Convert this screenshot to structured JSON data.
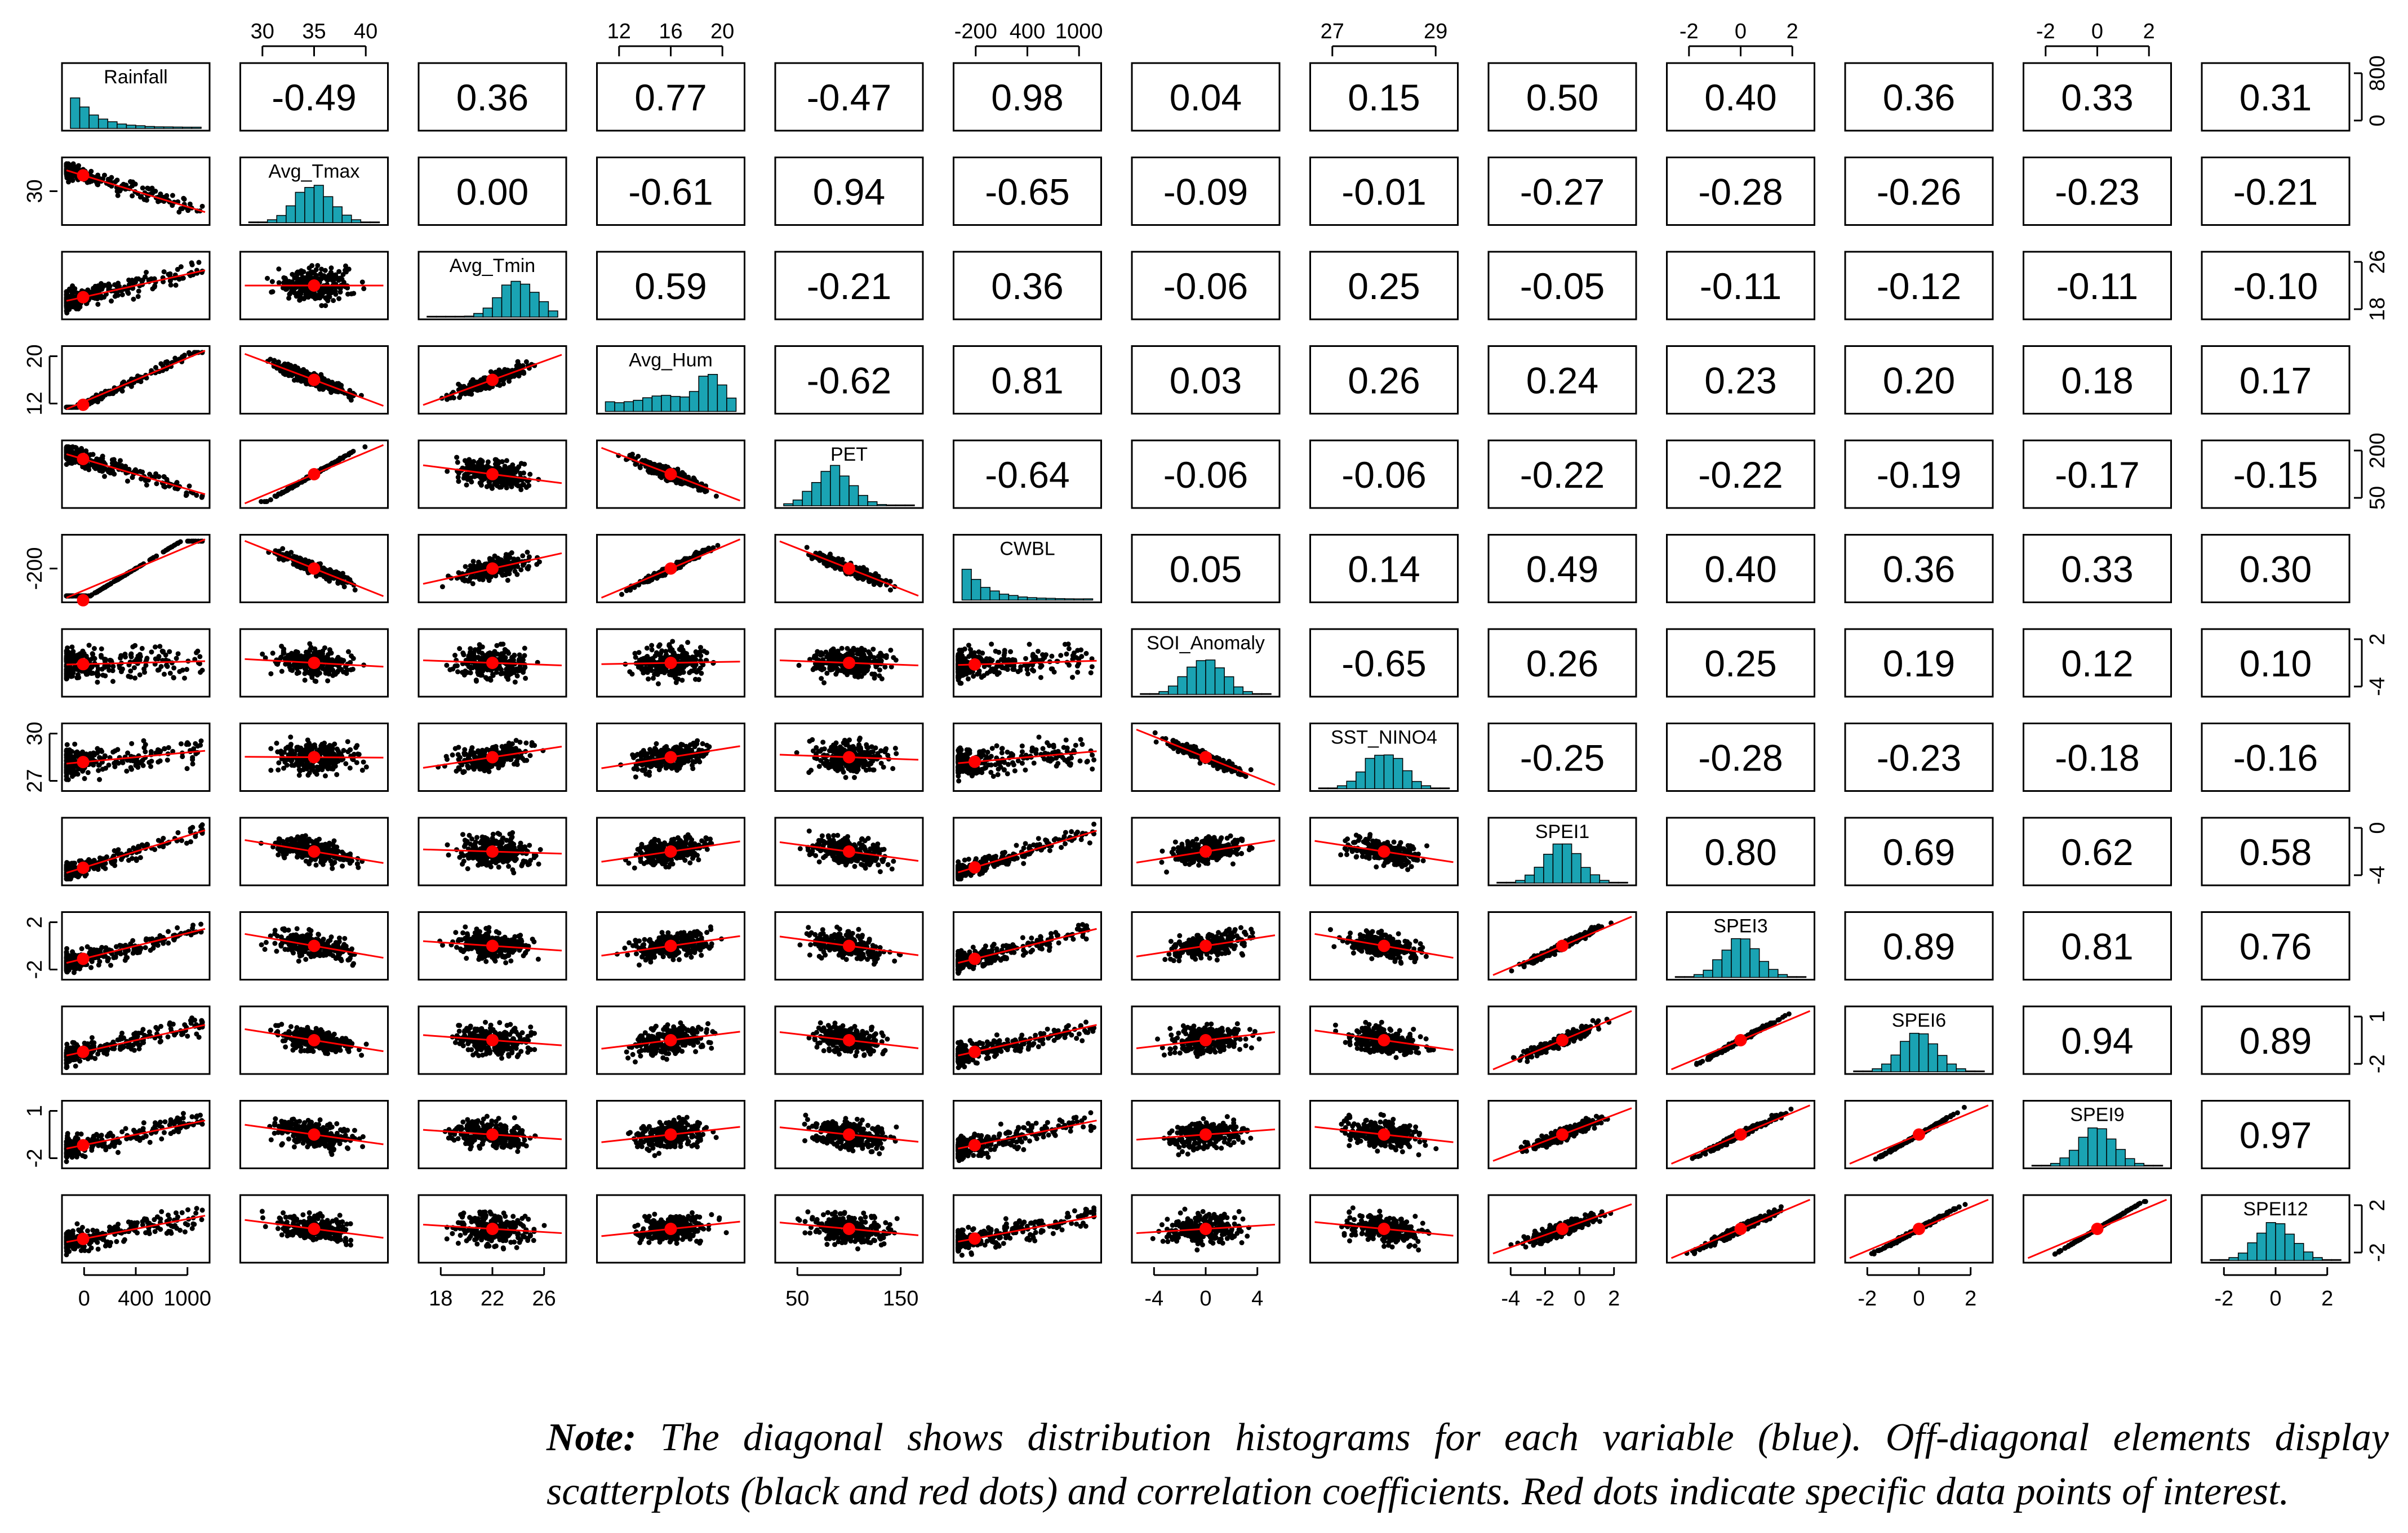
{
  "chart_data": {
    "type": "scatter-matrix",
    "variables": [
      "Rainfall",
      "Avg_Tmax",
      "Avg_Tmin",
      "Avg_Hum",
      "PET",
      "CWBL",
      "SOI_Anomaly",
      "SST_NINO4",
      "SPEI1",
      "SPEI3",
      "SPEI6",
      "SPEI9",
      "SPEI12"
    ],
    "correlations": [
      [
        null,
        -0.49,
        0.36,
        0.77,
        -0.47,
        0.98,
        0.04,
        0.15,
        0.5,
        0.4,
        0.36,
        0.33,
        0.31
      ],
      [
        null,
        null,
        0.0,
        -0.61,
        0.94,
        -0.65,
        -0.09,
        -0.01,
        -0.27,
        -0.28,
        -0.26,
        -0.23,
        -0.21
      ],
      [
        null,
        null,
        null,
        0.59,
        -0.21,
        0.36,
        -0.06,
        0.25,
        -0.05,
        -0.11,
        -0.12,
        -0.11,
        -0.1
      ],
      [
        null,
        null,
        null,
        null,
        -0.62,
        0.81,
        0.03,
        0.26,
        0.24,
        0.23,
        0.2,
        0.18,
        0.17
      ],
      [
        null,
        null,
        null,
        null,
        null,
        -0.64,
        -0.06,
        -0.06,
        -0.22,
        -0.22,
        -0.19,
        -0.17,
        -0.15
      ],
      [
        null,
        null,
        null,
        null,
        null,
        null,
        0.05,
        0.14,
        0.49,
        0.4,
        0.36,
        0.33,
        0.3
      ],
      [
        null,
        null,
        null,
        null,
        null,
        null,
        null,
        -0.65,
        0.26,
        0.25,
        0.19,
        0.12,
        0.1
      ],
      [
        null,
        null,
        null,
        null,
        null,
        null,
        null,
        null,
        -0.25,
        -0.28,
        -0.23,
        -0.18,
        -0.16
      ],
      [
        null,
        null,
        null,
        null,
        null,
        null,
        null,
        null,
        null,
        0.8,
        0.69,
        0.62,
        0.58
      ],
      [
        null,
        null,
        null,
        null,
        null,
        null,
        null,
        null,
        null,
        null,
        0.89,
        0.81,
        0.76
      ],
      [
        null,
        null,
        null,
        null,
        null,
        null,
        null,
        null,
        null,
        null,
        null,
        0.94,
        0.89
      ],
      [
        null,
        null,
        null,
        null,
        null,
        null,
        null,
        null,
        null,
        null,
        null,
        null,
        0.97
      ],
      [
        null,
        null,
        null,
        null,
        null,
        null,
        null,
        null,
        null,
        null,
        null,
        null,
        null
      ]
    ],
    "correlation_labels": [
      [
        null,
        "-0.49",
        "0.36",
        "0.77",
        "-0.47",
        "0.98",
        "0.04",
        "0.15",
        "0.50",
        "0.40",
        "0.36",
        "0.33",
        "0.31"
      ],
      [
        null,
        null,
        "0.00",
        "-0.61",
        "0.94",
        "-0.65",
        "-0.09",
        "-0.01",
        "-0.27",
        "-0.28",
        "-0.26",
        "-0.23",
        "-0.21"
      ],
      [
        null,
        null,
        null,
        "0.59",
        "-0.21",
        "0.36",
        "-0.06",
        "0.25",
        "-0.05",
        "-0.11",
        "-0.12",
        "-0.11",
        "-0.10"
      ],
      [
        null,
        null,
        null,
        null,
        "-0.62",
        "0.81",
        "0.03",
        "0.26",
        "0.24",
        "0.23",
        "0.20",
        "0.18",
        "0.17"
      ],
      [
        null,
        null,
        null,
        null,
        null,
        "-0.64",
        "-0.06",
        "-0.06",
        "-0.22",
        "-0.22",
        "-0.19",
        "-0.17",
        "-0.15"
      ],
      [
        null,
        null,
        null,
        null,
        null,
        null,
        "0.05",
        "0.14",
        "0.49",
        "0.40",
        "0.36",
        "0.33",
        "0.30"
      ],
      [
        null,
        null,
        null,
        null,
        null,
        null,
        null,
        "-0.65",
        "0.26",
        "0.25",
        "0.19",
        "0.12",
        "0.10"
      ],
      [
        null,
        null,
        null,
        null,
        null,
        null,
        null,
        null,
        "-0.25",
        "-0.28",
        "-0.23",
        "-0.18",
        "-0.16"
      ],
      [
        null,
        null,
        null,
        null,
        null,
        null,
        null,
        null,
        null,
        "0.80",
        "0.69",
        "0.62",
        "0.58"
      ],
      [
        null,
        null,
        null,
        null,
        null,
        null,
        null,
        null,
        null,
        null,
        "0.89",
        "0.81",
        "0.76"
      ],
      [
        null,
        null,
        null,
        null,
        null,
        null,
        null,
        null,
        null,
        null,
        null,
        "0.94",
        "0.89"
      ],
      [
        null,
        null,
        null,
        null,
        null,
        null,
        null,
        null,
        null,
        null,
        null,
        null,
        "0.97"
      ],
      [
        null,
        null,
        null,
        null,
        null,
        null,
        null,
        null,
        null,
        null,
        null,
        null,
        null
      ]
    ],
    "top_axes": [
      {
        "column": 1,
        "ticks": [
          "30",
          "35",
          "40"
        ]
      },
      {
        "column": 3,
        "ticks": [
          "12",
          "16",
          "20"
        ]
      },
      {
        "column": 5,
        "ticks": [
          "-200",
          "400",
          "1000"
        ]
      },
      {
        "column": 7,
        "ticks": [
          "27",
          "29"
        ]
      },
      {
        "column": 9,
        "ticks": [
          "-2",
          "0",
          "2"
        ]
      },
      {
        "column": 11,
        "ticks": [
          "-2",
          "0",
          "2"
        ]
      }
    ],
    "bottom_axes": [
      {
        "column": 0,
        "ticks": [
          "0",
          "400",
          "1000"
        ]
      },
      {
        "column": 2,
        "ticks": [
          "18",
          "22",
          "26"
        ]
      },
      {
        "column": 4,
        "ticks": [
          "50",
          "150"
        ]
      },
      {
        "column": 6,
        "ticks": [
          "-4",
          "0",
          "4"
        ]
      },
      {
        "column": 8,
        "ticks": [
          "-4",
          "-2",
          "0",
          "2"
        ]
      },
      {
        "column": 10,
        "ticks": [
          "-2",
          "0",
          "2"
        ]
      },
      {
        "column": 12,
        "ticks": [
          "-2",
          "0",
          "2"
        ]
      }
    ],
    "left_axes": [
      {
        "row": 1,
        "ticks": [
          "30"
        ]
      },
      {
        "row": 3,
        "ticks": [
          "12",
          "20"
        ]
      },
      {
        "row": 5,
        "ticks": [
          "-200"
        ]
      },
      {
        "row": 7,
        "ticks": [
          "27",
          "30"
        ]
      },
      {
        "row": 9,
        "ticks": [
          "-2",
          "2"
        ]
      },
      {
        "row": 11,
        "ticks": [
          "-2",
          "1"
        ]
      }
    ],
    "right_axes": [
      {
        "row": 0,
        "ticks": [
          "0",
          "800"
        ]
      },
      {
        "row": 2,
        "ticks": [
          "18",
          "26"
        ]
      },
      {
        "row": 4,
        "ticks": [
          "50",
          "200"
        ]
      },
      {
        "row": 6,
        "ticks": [
          "-4",
          "2"
        ]
      },
      {
        "row": 8,
        "ticks": [
          "-4",
          "0"
        ]
      },
      {
        "row": 10,
        "ticks": [
          "-2",
          "1"
        ]
      },
      {
        "row": 12,
        "ticks": [
          "-2",
          "2"
        ]
      }
    ],
    "colors": {
      "histogram_fill": "#1aa3b3",
      "scatter_points": "#000000",
      "fit_line": "#ff0000",
      "panel_border": "#000000"
    }
  },
  "note": {
    "label": "Note:",
    "line1": "The diagonal shows distribution histograms for each variable (blue). Off-diagonal elements display",
    "line2": "scatterplots (black and red dots) and correlation coefficients. Red dots indicate specific data points of interest."
  }
}
